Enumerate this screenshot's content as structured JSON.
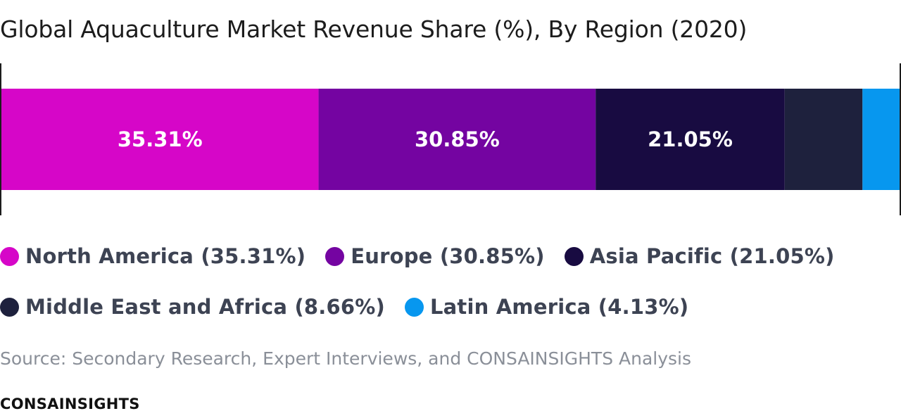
{
  "chart_data": {
    "type": "bar",
    "orientation": "horizontal-stacked-100",
    "title": "Global Aquaculture Market Revenue Share (%), By Region (2020)",
    "xlabel": "",
    "ylabel": "",
    "xlim": [
      0,
      100
    ],
    "grid": false,
    "legend_placement": "bottom",
    "series": [
      {
        "name": "North America",
        "value": 35.31,
        "label": "35.31%",
        "legend": "North America (35.31%)",
        "color": "#d606c8"
      },
      {
        "name": "Europe",
        "value": 30.85,
        "label": "30.85%",
        "legend": "Europe (30.85%)",
        "color": "#7404a1"
      },
      {
        "name": "Asia Pacific",
        "value": 21.05,
        "label": "21.05%",
        "legend": "Asia Pacific (21.05%)",
        "color": "#180b41"
      },
      {
        "name": "Middle East and Africa",
        "value": 8.66,
        "label": "",
        "legend": "Middle East and Africa (8.66%)",
        "color": "#1e213d"
      },
      {
        "name": "Latin America",
        "value": 4.13,
        "label": "",
        "legend": "Latin America (4.13%)",
        "color": "#0797ef"
      }
    ]
  },
  "footer": {
    "source": "Source: Secondary Research, Expert Interviews, and CONSAINSIGHTS Analysis",
    "brand": "CONSAINSIGHTS"
  }
}
